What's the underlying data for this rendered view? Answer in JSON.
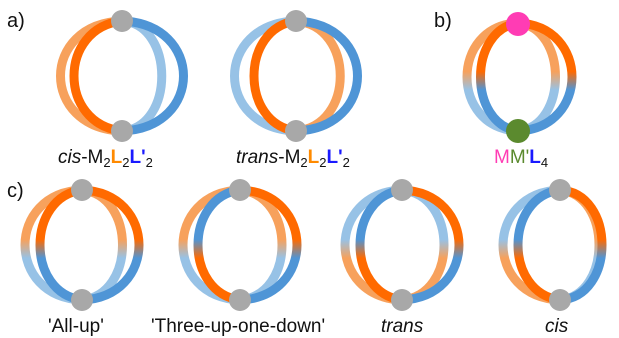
{
  "colors": {
    "orange": "#ff6a00",
    "orange_light": "#f7a15c",
    "blue": "#4f95d6",
    "blue_light": "#97c2e6",
    "node_grey": "#a8a8a8",
    "magenta": "#ff3cb4",
    "green": "#5b8a2e",
    "ligand_L_color": "#ff8a00",
    "ligand_Lprime_color": "#1a1aff"
  },
  "panels": {
    "a": {
      "label": "a)",
      "captions": [
        {
          "prefix": "cis",
          "dash": "-M",
          "s1": "2",
          "L": "L",
          "s2": "2",
          "Lp": "L'",
          "s3": "2"
        },
        {
          "prefix": "trans",
          "dash": "-M",
          "s1": "2",
          "L": "L",
          "s2": "2",
          "Lp": "L'",
          "s3": "2"
        }
      ]
    },
    "b": {
      "label": "b)",
      "caption": {
        "M1": "M",
        "M2": "M'",
        "L": "L",
        "sub": "4"
      }
    },
    "c": {
      "label": "c)",
      "captions": [
        "'All-up'",
        "'Three-up-one-down'",
        "trans",
        "cis"
      ]
    }
  }
}
